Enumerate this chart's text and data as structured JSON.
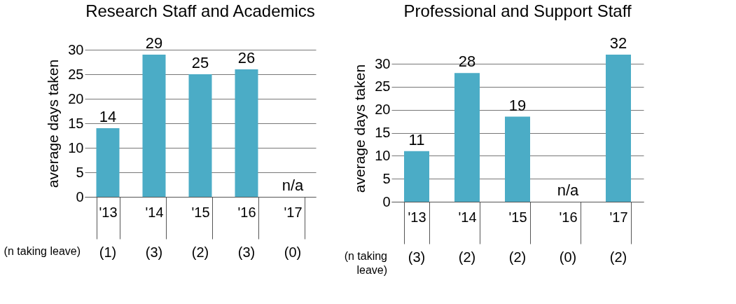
{
  "chart_data": [
    {
      "type": "bar",
      "title": "Research Staff and Academics",
      "ylabel": "average days taken",
      "categories": [
        "'13",
        "'14",
        "'15",
        "'16",
        "'17"
      ],
      "values": [
        14,
        29,
        25,
        26,
        0
      ],
      "value_labels": [
        "14",
        "29",
        "25",
        "26",
        "n/a"
      ],
      "color": "#4bacc6",
      "ylim": [
        0,
        30
      ],
      "yticks": [
        0,
        5,
        10,
        15,
        20,
        25,
        30
      ],
      "grid": "y",
      "annotations": [
        "(n taking leave)",
        "(1)",
        "(3)",
        "(2)",
        "(3)",
        "(0)"
      ]
    },
    {
      "type": "bar",
      "title": "Professional and Support Staff",
      "ylabel": "average days taken",
      "categories": [
        "'13",
        "'14",
        "'15",
        "'16",
        "'17"
      ],
      "values": [
        11,
        28,
        18.5,
        0,
        32
      ],
      "value_labels": [
        "11",
        "28",
        "19",
        "n/a",
        "32"
      ],
      "color": "#4bacc6",
      "ylim": [
        0,
        32
      ],
      "yticks": [
        0,
        5,
        10,
        15,
        20,
        25,
        30
      ],
      "grid": "y",
      "annotations": [
        "(n taking\nleave)",
        "(3)",
        "(2)",
        "(2)",
        "(0)",
        "(2)"
      ]
    }
  ]
}
